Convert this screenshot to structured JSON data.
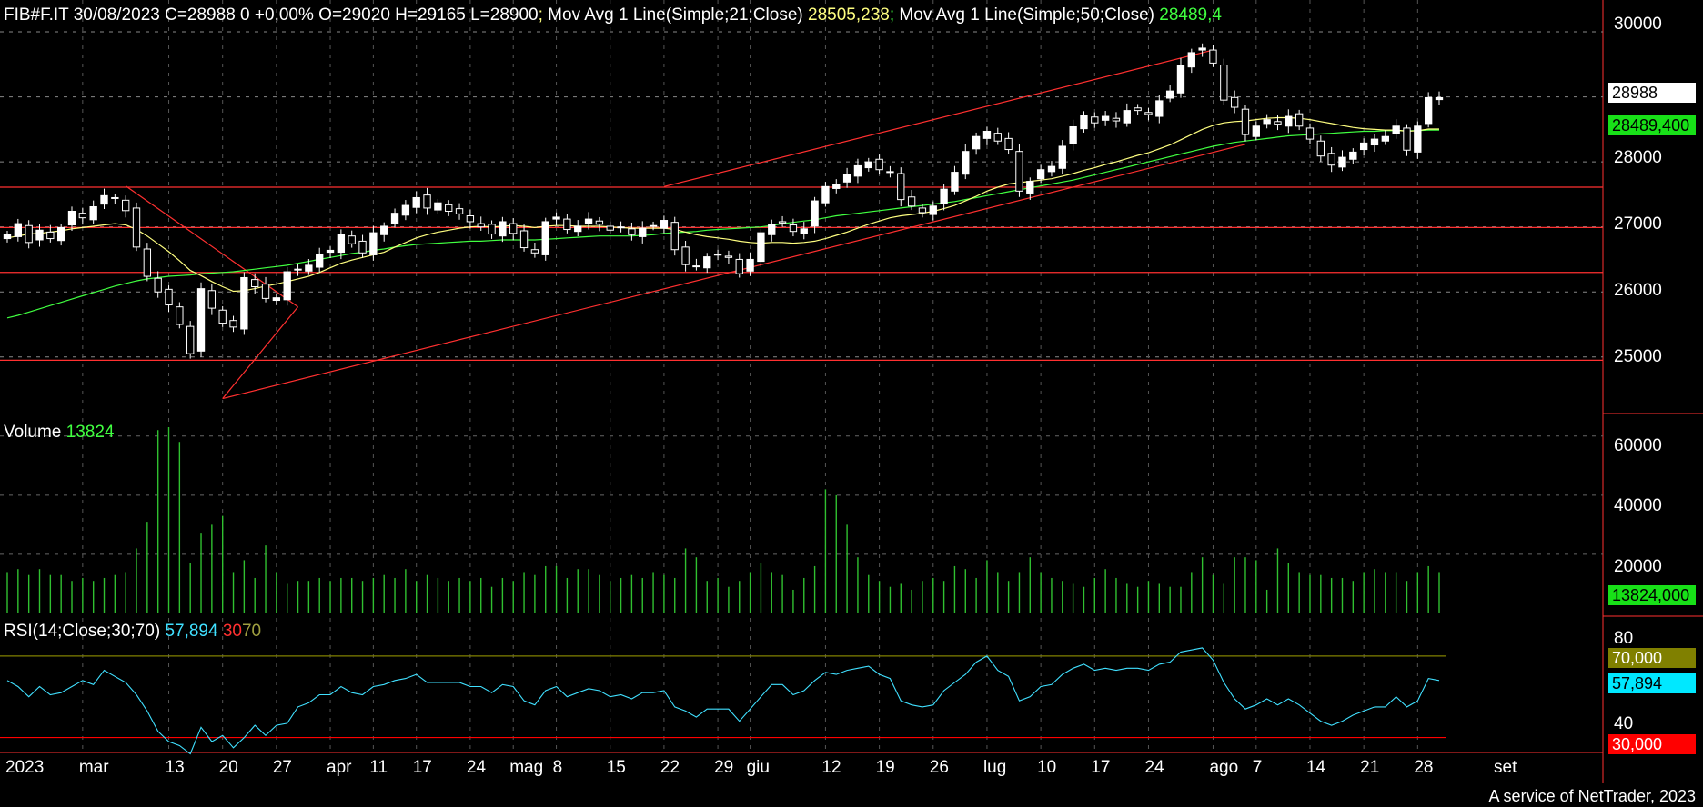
{
  "header": {
    "symbol": "FIB#F.IT",
    "date": "30/08/2023",
    "close": "C=28988",
    "change": "0",
    "change_pct": "+0,00%",
    "open": "O=29020",
    "high": "H=29165",
    "low": "L=28900",
    "ma21_label": "Mov Avg 1 Line(Simple;21;Close)",
    "ma21_value": "28505,238",
    "ma50_label": "Mov Avg 1 Line(Simple;50;Close)",
    "ma50_value": "28489,4"
  },
  "volume": {
    "label": "Volume",
    "value": "13824",
    "box": "13824,000"
  },
  "rsi": {
    "label": "RSI(14;Close;30;70)",
    "value": "57,894",
    "low": "30",
    "high": "70",
    "box_value": "57,894",
    "box_high": "70,000",
    "box_low": "30,000"
  },
  "price_boxes": {
    "last": "28988",
    "ma50": "28489,400"
  },
  "price_axis": [
    "30000",
    "29000",
    "28000",
    "27000",
    "26000",
    "25000"
  ],
  "volume_axis": [
    "60000",
    "40000",
    "20000"
  ],
  "rsi_axis": [
    "80",
    "40"
  ],
  "x_axis": [
    "2023",
    "mar",
    "13",
    "20",
    "27",
    "apr",
    "11",
    "17",
    "24",
    "mag",
    "8",
    "15",
    "22",
    "29",
    "giu",
    "12",
    "19",
    "26",
    "lug",
    "10",
    "17",
    "24",
    "ago",
    "7",
    "14",
    "21",
    "28",
    "set"
  ],
  "credit": "A service of NetTrader, 2023",
  "colors": {
    "ma21": "#ffff80",
    "ma50": "#40ff40",
    "rsi": "#40e0ff",
    "rsi_high": "#808000",
    "rsi_low": "#ff0000",
    "volume": "#30c030",
    "lines": "#ff3030"
  },
  "chart_data": {
    "type": "candlestick",
    "x_dates": [
      "2023-02-20",
      "2023-02-21",
      "2023-02-22",
      "2023-02-23",
      "2023-02-24",
      "2023-02-27",
      "2023-02-28",
      "2023-03-01",
      "2023-03-02",
      "2023-03-03",
      "2023-03-06",
      "2023-03-07",
      "2023-03-08",
      "2023-03-09",
      "2023-03-10",
      "2023-03-13",
      "2023-03-14",
      "2023-03-15",
      "2023-03-16",
      "2023-03-17",
      "2023-03-20",
      "2023-03-21",
      "2023-03-22",
      "2023-03-23",
      "2023-03-24",
      "2023-03-27",
      "2023-03-28",
      "2023-03-29",
      "2023-03-30",
      "2023-03-31",
      "2023-04-03",
      "2023-04-04",
      "2023-04-05",
      "2023-04-06",
      "2023-04-11",
      "2023-04-12",
      "2023-04-13",
      "2023-04-14",
      "2023-04-17",
      "2023-04-18",
      "2023-04-19",
      "2023-04-20",
      "2023-04-21",
      "2023-04-24",
      "2023-04-26",
      "2023-04-27",
      "2023-04-28",
      "2023-05-02",
      "2023-05-03",
      "2023-05-04",
      "2023-05-05",
      "2023-05-08",
      "2023-05-09",
      "2023-05-10",
      "2023-05-11",
      "2023-05-12",
      "2023-05-15",
      "2023-05-16",
      "2023-05-17",
      "2023-05-18",
      "2023-05-19",
      "2023-05-22",
      "2023-05-23",
      "2023-05-24",
      "2023-05-25",
      "2023-05-26",
      "2023-05-29",
      "2023-05-30",
      "2023-05-31",
      "2023-06-01",
      "2023-06-02",
      "2023-06-05",
      "2023-06-06",
      "2023-06-07",
      "2023-06-08",
      "2023-06-09",
      "2023-06-12",
      "2023-06-13",
      "2023-06-14",
      "2023-06-15",
      "2023-06-16",
      "2023-06-19",
      "2023-06-20",
      "2023-06-21",
      "2023-06-22",
      "2023-06-23",
      "2023-06-26",
      "2023-06-27",
      "2023-06-28",
      "2023-06-29",
      "2023-06-30",
      "2023-07-03",
      "2023-07-04",
      "2023-07-05",
      "2023-07-06",
      "2023-07-07",
      "2023-07-10",
      "2023-07-11",
      "2023-07-12",
      "2023-07-13",
      "2023-07-14",
      "2023-07-17",
      "2023-07-18",
      "2023-07-19",
      "2023-07-20",
      "2023-07-21",
      "2023-07-24",
      "2023-07-25",
      "2023-07-26",
      "2023-07-27",
      "2023-07-28",
      "2023-07-31",
      "2023-08-01",
      "2023-08-02",
      "2023-08-03",
      "2023-08-04",
      "2023-08-07",
      "2023-08-08",
      "2023-08-09",
      "2023-08-10",
      "2023-08-11",
      "2023-08-14",
      "2023-08-15",
      "2023-08-16",
      "2023-08-17",
      "2023-08-18",
      "2023-08-21",
      "2023-08-22",
      "2023-08-23",
      "2023-08-24",
      "2023-08-25",
      "2023-08-28",
      "2023-08-29",
      "2023-08-30"
    ],
    "close": [
      26880,
      27050,
      26760,
      26950,
      26820,
      26990,
      27240,
      27140,
      27310,
      27480,
      27440,
      27250,
      26690,
      26240,
      26000,
      25800,
      25500,
      25050,
      26050,
      25750,
      25520,
      25460,
      26220,
      26080,
      25900,
      25910,
      26310,
      26350,
      26410,
      26570,
      26640,
      26890,
      26740,
      26600,
      26910,
      27010,
      27210,
      27330,
      27450,
      27290,
      27370,
      27240,
      27200,
      27080,
      27000,
      26890,
      27080,
      26900,
      26680,
      26600,
      27080,
      27150,
      26960,
      27010,
      27120,
      27040,
      26950,
      27000,
      26880,
      26980,
      27010,
      27100,
      26650,
      26420,
      26400,
      26540,
      26580,
      26530,
      26280,
      26500,
      26910,
      27040,
      27060,
      26930,
      26970,
      27400,
      27620,
      27650,
      27810,
      27940,
      28000,
      27880,
      27850,
      27420,
      27320,
      27220,
      27320,
      27580,
      27840,
      28160,
      28390,
      28470,
      28320,
      28190,
      27550,
      27700,
      27880,
      27930,
      28240,
      28540,
      28720,
      28600,
      28700,
      28630,
      28790,
      28790,
      28730,
      28940,
      29090,
      29490,
      29680,
      29750,
      29520,
      28950,
      28840,
      28420,
      28550,
      28650,
      28580,
      28700,
      28550,
      28350,
      28090,
      27950,
      28070,
      28150,
      28290,
      28350,
      28390,
      28550,
      28180,
      28550,
      28988,
      28988
    ],
    "ma21": [
      26830,
      26860,
      26890,
      26900,
      26920,
      26940,
      26970,
      26990,
      27010,
      27030,
      27050,
      27030,
      26960,
      26860,
      26740,
      26620,
      26480,
      26330,
      26250,
      26160,
      26080,
      26010,
      26020,
      26050,
      26090,
      26120,
      26160,
      26200,
      26240,
      26300,
      26370,
      26440,
      26490,
      26530,
      26570,
      26610,
      26690,
      26760,
      26830,
      26880,
      26920,
      26950,
      26980,
      27000,
      27010,
      27000,
      27010,
      27020,
      27010,
      26990,
      27010,
      27020,
      27020,
      27010,
      27010,
      27010,
      27000,
      26990,
      26980,
      26980,
      26980,
      26980,
      26960,
      26920,
      26880,
      26850,
      26830,
      26810,
      26780,
      26760,
      26750,
      26760,
      26760,
      26750,
      26760,
      26780,
      26820,
      26870,
      26920,
      26980,
      27040,
      27090,
      27140,
      27170,
      27190,
      27210,
      27240,
      27280,
      27330,
      27400,
      27470,
      27550,
      27610,
      27660,
      27680,
      27700,
      27720,
      27740,
      27780,
      27820,
      27870,
      27910,
      27960,
      28000,
      28050,
      28100,
      28140,
      28200,
      28260,
      28340,
      28420,
      28500,
      28560,
      28600,
      28620,
      28630,
      28650,
      28670,
      28680,
      28680,
      28670,
      28650,
      28620,
      28590,
      28560,
      28530,
      28510,
      28500,
      28490,
      28490,
      28470,
      28480,
      28505,
      28505
    ],
    "ma50": [
      25600,
      25640,
      25690,
      25740,
      25790,
      25840,
      25890,
      25940,
      25990,
      26040,
      26090,
      26130,
      26170,
      26200,
      26220,
      26240,
      26250,
      26260,
      26280,
      26290,
      26300,
      26310,
      26330,
      26350,
      26370,
      26390,
      26410,
      26440,
      26470,
      26500,
      26530,
      26560,
      26590,
      26610,
      26640,
      26660,
      26690,
      26710,
      26730,
      26740,
      26750,
      26760,
      26770,
      26780,
      26780,
      26790,
      26800,
      26800,
      26800,
      26800,
      26810,
      26820,
      26830,
      26840,
      26850,
      26860,
      26860,
      26860,
      26860,
      26870,
      26880,
      26900,
      26910,
      26920,
      26930,
      26950,
      26960,
      26970,
      26980,
      26990,
      27000,
      27020,
      27050,
      27070,
      27090,
      27110,
      27140,
      27170,
      27190,
      27210,
      27230,
      27250,
      27270,
      27290,
      27310,
      27330,
      27350,
      27370,
      27390,
      27420,
      27450,
      27480,
      27510,
      27540,
      27570,
      27600,
      27630,
      27660,
      27690,
      27720,
      27760,
      27800,
      27840,
      27880,
      27920,
      27960,
      28000,
      28040,
      28080,
      28120,
      28160,
      28200,
      28240,
      28270,
      28300,
      28320,
      28340,
      28360,
      28380,
      28400,
      28410,
      28420,
      28430,
      28440,
      28450,
      28460,
      28470,
      28470,
      28480,
      28480,
      28480,
      28480,
      28489,
      28489
    ],
    "volume": [
      14000,
      15000,
      13000,
      15000,
      13000,
      13000,
      11000,
      12000,
      11000,
      12000,
      13000,
      14000,
      22000,
      31000,
      62000,
      63000,
      58000,
      17000,
      27000,
      30000,
      33000,
      14000,
      18000,
      12000,
      23000,
      14000,
      10000,
      11000,
      11000,
      12000,
      11000,
      12000,
      12000,
      11000,
      12000,
      13000,
      12000,
      15000,
      11000,
      13000,
      12000,
      11000,
      12000,
      11000,
      12000,
      9000,
      12000,
      11000,
      14000,
      13000,
      16000,
      16000,
      12000,
      15000,
      15000,
      13000,
      11000,
      12000,
      13000,
      12000,
      14000,
      13000,
      12000,
      22000,
      19000,
      11000,
      12000,
      9000,
      11000,
      14000,
      17000,
      14000,
      13000,
      8000,
      12000,
      16000,
      42000,
      40000,
      30000,
      19000,
      13000,
      11000,
      9000,
      10000,
      8000,
      11000,
      12000,
      11000,
      16000,
      15000,
      12000,
      18000,
      14000,
      11000,
      14000,
      19000,
      14000,
      12000,
      11000,
      10000,
      9000,
      12000,
      15000,
      12000,
      10000,
      9000,
      11000,
      10000,
      9000,
      9000,
      14000,
      19000,
      13000,
      10000,
      19000,
      19000,
      18000,
      8000,
      22000,
      17000,
      14000,
      13000,
      13000,
      12000,
      12000,
      11000,
      14000,
      15000,
      14000,
      14000,
      11000,
      14000,
      16000,
      14000
    ],
    "rsi": [
      58,
      55,
      50,
      55,
      51,
      52,
      55,
      58,
      56,
      63,
      60,
      57,
      51,
      43,
      33,
      28,
      26,
      22,
      35,
      28,
      31,
      25,
      30,
      36,
      31,
      36,
      37,
      45,
      47,
      51,
      51,
      55,
      52,
      51,
      55,
      56,
      58,
      59,
      61,
      57,
      57,
      57,
      57,
      55,
      55,
      52,
      56,
      55,
      48,
      46,
      53,
      55,
      50,
      52,
      54,
      53,
      50,
      51,
      49,
      52,
      52,
      53,
      45,
      43,
      40,
      44,
      44,
      44,
      38,
      44,
      50,
      56,
      56,
      51,
      53,
      58,
      62,
      61,
      63,
      64,
      65,
      61,
      59,
      48,
      46,
      45,
      46,
      53,
      57,
      61,
      67,
      70,
      63,
      60,
      48,
      50,
      55,
      56,
      61,
      64,
      66,
      63,
      64,
      63,
      64,
      64,
      63,
      66,
      67,
      72,
      73,
      74,
      68,
      57,
      49,
      44,
      46,
      49,
      46,
      49,
      46,
      42,
      38,
      36,
      38,
      41,
      43,
      45,
      45,
      50,
      45,
      48,
      59,
      58
    ],
    "price_ylim": [
      24200,
      30350
    ],
    "volume_ylim": [
      0,
      63000
    ],
    "rsi_ylim": [
      24,
      82
    ],
    "horizontal_levels": [
      27610,
      26990,
      26300,
      24950
    ],
    "trend_lines": [
      {
        "from": [
          "2023-05-22",
          27620
        ],
        "to": [
          "2023-08-01",
          29720
        ]
      },
      {
        "from": [
          "2023-03-20",
          24360
        ],
        "to": [
          "2023-08-04",
          28270
        ]
      },
      {
        "from": [
          "2023-03-07",
          27630
        ],
        "to": [
          "2023-03-29",
          25770
        ]
      },
      {
        "from": [
          "2023-03-20",
          24360
        ],
        "to": [
          "2023-03-29",
          25770
        ]
      }
    ]
  }
}
